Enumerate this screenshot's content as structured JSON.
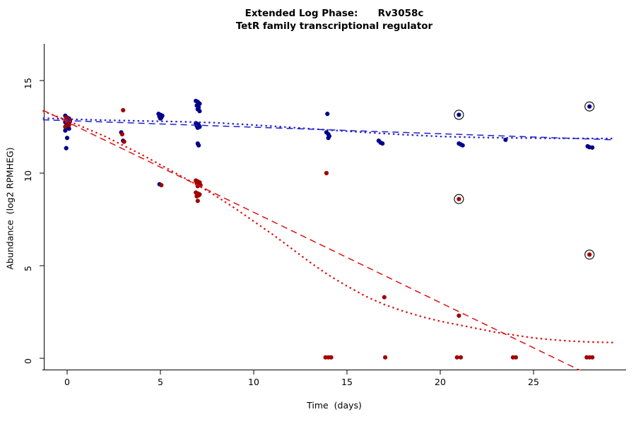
{
  "chart_data": {
    "type": "scatter",
    "title": "Extended Log Phase:      Rv3058c",
    "subtitle": "TetR family transcriptional regulator",
    "xlabel": "Time  (days)",
    "ylabel": "Abundance  (log2 RPMHEG)",
    "x_ticks": [
      0,
      5,
      10,
      15,
      20,
      25
    ],
    "y_ticks": [
      0,
      5,
      10,
      15
    ],
    "xlim": [
      -1.3,
      29.5
    ],
    "ylim": [
      -0.6,
      17.7
    ],
    "grid": false,
    "legend": "none",
    "colors": {
      "blue_point": "#00008B",
      "red_point": "#A00000",
      "blue_line": "#2121CC",
      "red_line": "#DD1111",
      "ring": "#000000"
    },
    "series": [
      {
        "name": "blue-condition-points",
        "color": "#00008B",
        "points": [
          [
            -0.1,
            13.1
          ],
          [
            0,
            13.0
          ],
          [
            0.1,
            12.95
          ],
          [
            -0.05,
            12.9
          ],
          [
            0.05,
            12.85
          ],
          [
            0.15,
            12.8
          ],
          [
            -0.1,
            12.75
          ],
          [
            0,
            12.7
          ],
          [
            0.1,
            12.65
          ],
          [
            -0.05,
            12.55
          ],
          [
            0.05,
            12.5
          ],
          [
            0,
            12.45
          ],
          [
            0.1,
            12.4
          ],
          [
            -0.1,
            12.3
          ],
          [
            0,
            11.9
          ],
          [
            -0.05,
            11.35
          ],
          [
            2.9,
            12.2
          ],
          [
            3,
            11.75
          ],
          [
            3.05,
            11.7
          ],
          [
            4.9,
            13.2
          ],
          [
            5,
            13.15
          ],
          [
            5.1,
            13.1
          ],
          [
            4.95,
            13.05
          ],
          [
            5.05,
            13.0
          ],
          [
            5,
            12.95
          ],
          [
            4.95,
            9.4
          ],
          [
            6.9,
            13.9
          ],
          [
            7,
            13.85
          ],
          [
            7.1,
            13.75
          ],
          [
            6.95,
            13.65
          ],
          [
            7.05,
            13.55
          ],
          [
            7,
            13.45
          ],
          [
            7.1,
            13.35
          ],
          [
            6.9,
            12.7
          ],
          [
            7,
            12.65
          ],
          [
            7.05,
            12.6
          ],
          [
            6.95,
            12.55
          ],
          [
            7.1,
            12.5
          ],
          [
            7,
            12.45
          ],
          [
            7,
            11.6
          ],
          [
            7.05,
            11.5
          ],
          [
            13.95,
            13.2
          ],
          [
            13.9,
            12.2
          ],
          [
            14,
            12.1
          ],
          [
            14.05,
            12.0
          ],
          [
            14,
            11.9
          ],
          [
            16.7,
            11.75
          ],
          [
            16.8,
            11.65
          ],
          [
            16.9,
            11.6
          ],
          [
            21,
            13.15,
            1
          ],
          [
            21,
            11.6
          ],
          [
            21.1,
            11.55
          ],
          [
            21.2,
            11.5
          ],
          [
            23.5,
            11.8
          ],
          [
            28,
            13.6,
            1
          ],
          [
            27.9,
            11.45
          ],
          [
            28,
            11.4
          ],
          [
            28.15,
            11.38
          ]
        ]
      },
      {
        "name": "red-condition-points",
        "color": "#A00000",
        "points": [
          [
            -0.05,
            13.0
          ],
          [
            0.05,
            12.9
          ],
          [
            0.15,
            12.85
          ],
          [
            0,
            12.75
          ],
          [
            0.1,
            12.6
          ],
          [
            -0.1,
            12.5
          ],
          [
            3,
            13.4
          ],
          [
            2.95,
            12.1
          ],
          [
            3.05,
            11.7
          ],
          [
            5.05,
            9.35
          ],
          [
            6.9,
            9.6
          ],
          [
            7,
            9.55
          ],
          [
            7.1,
            9.5
          ],
          [
            6.95,
            9.45
          ],
          [
            7.05,
            9.4
          ],
          [
            7.15,
            9.35
          ],
          [
            7,
            9.3
          ],
          [
            6.9,
            8.95
          ],
          [
            7,
            8.9
          ],
          [
            7.1,
            8.85
          ],
          [
            7.05,
            8.8
          ],
          [
            6.95,
            8.75
          ],
          [
            7,
            8.5
          ],
          [
            13.9,
            10.0
          ],
          [
            13.85,
            0.05
          ],
          [
            14,
            0.05
          ],
          [
            14.15,
            0.05
          ],
          [
            17,
            3.3
          ],
          [
            17.05,
            0.05
          ],
          [
            21,
            8.6,
            1
          ],
          [
            21,
            2.3
          ],
          [
            20.9,
            0.05
          ],
          [
            21.1,
            0.05
          ],
          [
            23.9,
            0.05
          ],
          [
            24.05,
            0.05
          ],
          [
            28,
            5.6,
            1
          ],
          [
            27.85,
            0.05
          ],
          [
            28,
            0.05
          ],
          [
            28.15,
            0.05
          ]
        ]
      }
    ],
    "lines": [
      {
        "name": "blue-trend-linear",
        "color": "#2121CC",
        "style": "dashed",
        "width": 1.5,
        "points": [
          [
            -1.3,
            12.88
          ],
          [
            29.3,
            11.8
          ]
        ]
      },
      {
        "name": "blue-trend-smooth",
        "color": "#2121CC",
        "style": "dotted",
        "width": 2.2,
        "points": [
          [
            -1.3,
            12.97
          ],
          [
            0,
            12.92
          ],
          [
            2,
            12.86
          ],
          [
            4,
            12.82
          ],
          [
            6,
            12.78
          ],
          [
            8,
            12.72
          ],
          [
            10,
            12.6
          ],
          [
            12,
            12.47
          ],
          [
            14,
            12.33
          ],
          [
            16,
            12.2
          ],
          [
            18,
            12.08
          ],
          [
            20,
            11.98
          ],
          [
            22,
            11.93
          ],
          [
            24,
            11.9
          ],
          [
            26,
            11.88
          ],
          [
            29.3,
            11.87
          ]
        ]
      },
      {
        "name": "red-trend-linear",
        "color": "#DD1111",
        "style": "dashed",
        "width": 1.5,
        "points": [
          [
            -1.3,
            13.4
          ],
          [
            27.8,
            -0.8
          ]
        ]
      },
      {
        "name": "red-trend-smooth",
        "color": "#DD1111",
        "style": "dotted",
        "width": 2.2,
        "points": [
          [
            -1.3,
            13.35
          ],
          [
            0,
            12.85
          ],
          [
            2,
            12.0
          ],
          [
            3,
            11.5
          ],
          [
            4,
            11.0
          ],
          [
            5,
            10.45
          ],
          [
            6,
            9.9
          ],
          [
            7,
            9.35
          ],
          [
            8,
            8.75
          ],
          [
            9,
            8.1
          ],
          [
            10,
            7.4
          ],
          [
            11,
            6.7
          ],
          [
            12,
            5.95
          ],
          [
            13,
            5.2
          ],
          [
            14,
            4.5
          ],
          [
            15,
            3.9
          ],
          [
            16,
            3.35
          ],
          [
            17,
            2.9
          ],
          [
            18,
            2.55
          ],
          [
            19,
            2.25
          ],
          [
            20,
            2.0
          ],
          [
            21,
            1.8
          ],
          [
            22,
            1.6
          ],
          [
            23,
            1.4
          ],
          [
            24,
            1.25
          ],
          [
            25,
            1.1
          ],
          [
            26,
            1.0
          ],
          [
            27,
            0.93
          ],
          [
            28,
            0.88
          ],
          [
            29.3,
            0.85
          ]
        ]
      }
    ]
  }
}
